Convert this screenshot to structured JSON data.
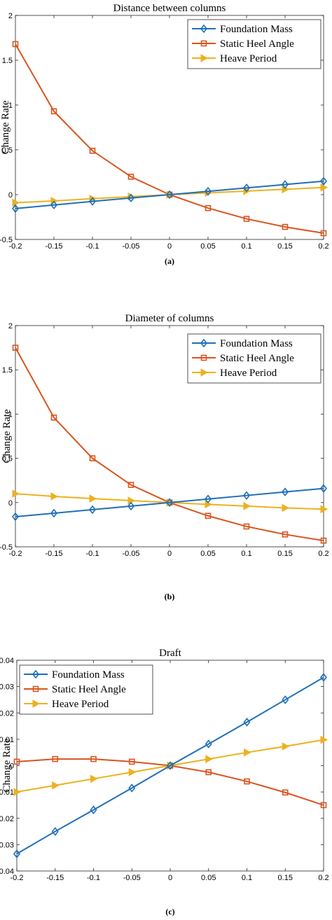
{
  "chart_data": [
    {
      "type": "line",
      "title": "Distance between columns",
      "ylabel": "Change Rate",
      "xlabel": "",
      "caption": "(a)",
      "x": [
        -0.2,
        -0.15,
        -0.1,
        -0.05,
        0,
        0.05,
        0.1,
        0.15,
        0.2
      ],
      "x_ticks": [
        "-0.2",
        "-0.15",
        "-0.1",
        "-0.05",
        "0",
        "0.05",
        "0.1",
        "0.15",
        "0.2"
      ],
      "xlim": [
        -0.2,
        0.2
      ],
      "ylim": [
        -0.5,
        2
      ],
      "y_ticks": [
        "-0.5",
        "0",
        "0.5",
        "1",
        "1.5",
        "2"
      ],
      "y_tick_values": [
        -0.5,
        0,
        0.5,
        1,
        1.5,
        2
      ],
      "legend_position": "top-right",
      "series": [
        {
          "name": "Foundation Mass",
          "color": "#1f6fb8",
          "marker": "diamond",
          "values": [
            -0.155,
            -0.115,
            -0.075,
            -0.037,
            0,
            0.037,
            0.075,
            0.113,
            0.15
          ]
        },
        {
          "name": "Static Heel Angle",
          "color": "#d9541e",
          "marker": "square",
          "values": [
            1.68,
            0.93,
            0.49,
            0.2,
            0,
            -0.15,
            -0.27,
            -0.36,
            -0.43
          ]
        },
        {
          "name": "Heave Period",
          "color": "#edb120",
          "marker": "triangle-right",
          "values": [
            -0.09,
            -0.07,
            -0.045,
            -0.022,
            0,
            0.02,
            0.04,
            0.06,
            0.08
          ]
        }
      ]
    },
    {
      "type": "line",
      "title": "Diameter of columns",
      "ylabel": "Change Rate",
      "xlabel": "",
      "caption": "(b)",
      "x": [
        -0.2,
        -0.15,
        -0.1,
        -0.05,
        0,
        0.05,
        0.1,
        0.15,
        0.2
      ],
      "x_ticks": [
        "-0.2",
        "-0.15",
        "-0.1",
        "-0.05",
        "0",
        "0.05",
        "0.1",
        "0.15",
        "0.2"
      ],
      "xlim": [
        -0.2,
        0.2
      ],
      "ylim": [
        -0.5,
        2
      ],
      "y_ticks": [
        "-0.5",
        "0",
        "0.5",
        "1",
        "1.5",
        "2"
      ],
      "y_tick_values": [
        -0.5,
        0,
        0.5,
        1,
        1.5,
        2
      ],
      "legend_position": "top-right",
      "series": [
        {
          "name": "Foundation Mass",
          "color": "#1f6fb8",
          "marker": "diamond",
          "values": [
            -0.16,
            -0.12,
            -0.08,
            -0.04,
            0,
            0.04,
            0.08,
            0.12,
            0.16
          ]
        },
        {
          "name": "Static Heel Angle",
          "color": "#d9541e",
          "marker": "square",
          "values": [
            1.75,
            0.96,
            0.5,
            0.2,
            0,
            -0.15,
            -0.27,
            -0.36,
            -0.43
          ]
        },
        {
          "name": "Heave Period",
          "color": "#edb120",
          "marker": "triangle-right",
          "values": [
            0.1,
            0.07,
            0.045,
            0.022,
            0,
            -0.02,
            -0.04,
            -0.06,
            -0.075
          ]
        }
      ]
    },
    {
      "type": "line",
      "title": "Draft",
      "ylabel": "Change Rate",
      "xlabel": "",
      "caption": "(c)",
      "x": [
        -0.2,
        -0.15,
        -0.1,
        -0.05,
        0,
        0.05,
        0.1,
        0.15,
        0.2
      ],
      "x_ticks": [
        "-0.2",
        "-0.15",
        "-0.1",
        "-0.05",
        "0",
        "0.05",
        "0.1",
        "0.15",
        "0.2"
      ],
      "xlim": [
        -0.2,
        0.2
      ],
      "ylim": [
        -0.04,
        0.04
      ],
      "y_ticks": [
        "-0.04",
        "-0.03",
        "-0.02",
        "-0.01",
        "0",
        "0.01",
        "0.02",
        "0.03",
        "0.04"
      ],
      "y_tick_values": [
        -0.04,
        -0.03,
        -0.02,
        -0.01,
        0,
        0.01,
        0.02,
        0.03,
        0.04
      ],
      "legend_position": "top-left",
      "series": [
        {
          "name": "Foundation Mass",
          "color": "#1f6fb8",
          "marker": "diamond",
          "values": [
            -0.0335,
            -0.025,
            -0.0168,
            -0.0085,
            0,
            0.0082,
            0.0165,
            0.025,
            0.0335
          ]
        },
        {
          "name": "Static Heel Angle",
          "color": "#d9541e",
          "marker": "square",
          "values": [
            0.0015,
            0.0025,
            0.0025,
            0.0015,
            0,
            -0.0025,
            -0.006,
            -0.0102,
            -0.015
          ]
        },
        {
          "name": "Heave Period",
          "color": "#edb120",
          "marker": "triangle-right",
          "values": [
            -0.01,
            -0.0075,
            -0.005,
            -0.0025,
            0,
            0.0025,
            0.005,
            0.0073,
            0.0098
          ]
        }
      ]
    }
  ]
}
